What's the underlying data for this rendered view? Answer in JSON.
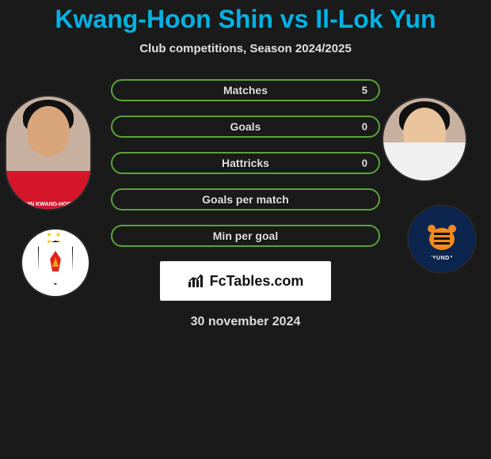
{
  "title_color": "#00b2e3",
  "title": "Kwang-Hoon Shin vs Il-Lok Yun",
  "subtitle": "Club competitions, Season 2024/2025",
  "date": "30 november 2024",
  "brand": "FcTables.com",
  "pill_border": "#5aa23c",
  "bg": "#1a1a1a",
  "stats": [
    {
      "label": "Matches",
      "right_value": "5"
    },
    {
      "label": "Goals",
      "right_value": "0"
    },
    {
      "label": "Hattricks",
      "right_value": "0"
    },
    {
      "label": "Goals per match",
      "right_value": ""
    },
    {
      "label": "Min per goal",
      "right_value": ""
    }
  ],
  "player_left": {
    "skin": "#d8a47a",
    "jersey": "#d4152a",
    "nameplate": "SHIN KWANG-HOON"
  },
  "player_right": {
    "skin": "#e9c39b",
    "jersey": "#f0f0f0"
  },
  "club_left": {
    "bg": "#ffffff",
    "shield_border": "#111111",
    "flame": "#e2231a",
    "flame_inner": "#f6a21b",
    "star_color": "#f2c200"
  },
  "club_right": {
    "bg": "#0c254f",
    "tiger": "#f58a1f",
    "label": "HYUNDAI"
  }
}
